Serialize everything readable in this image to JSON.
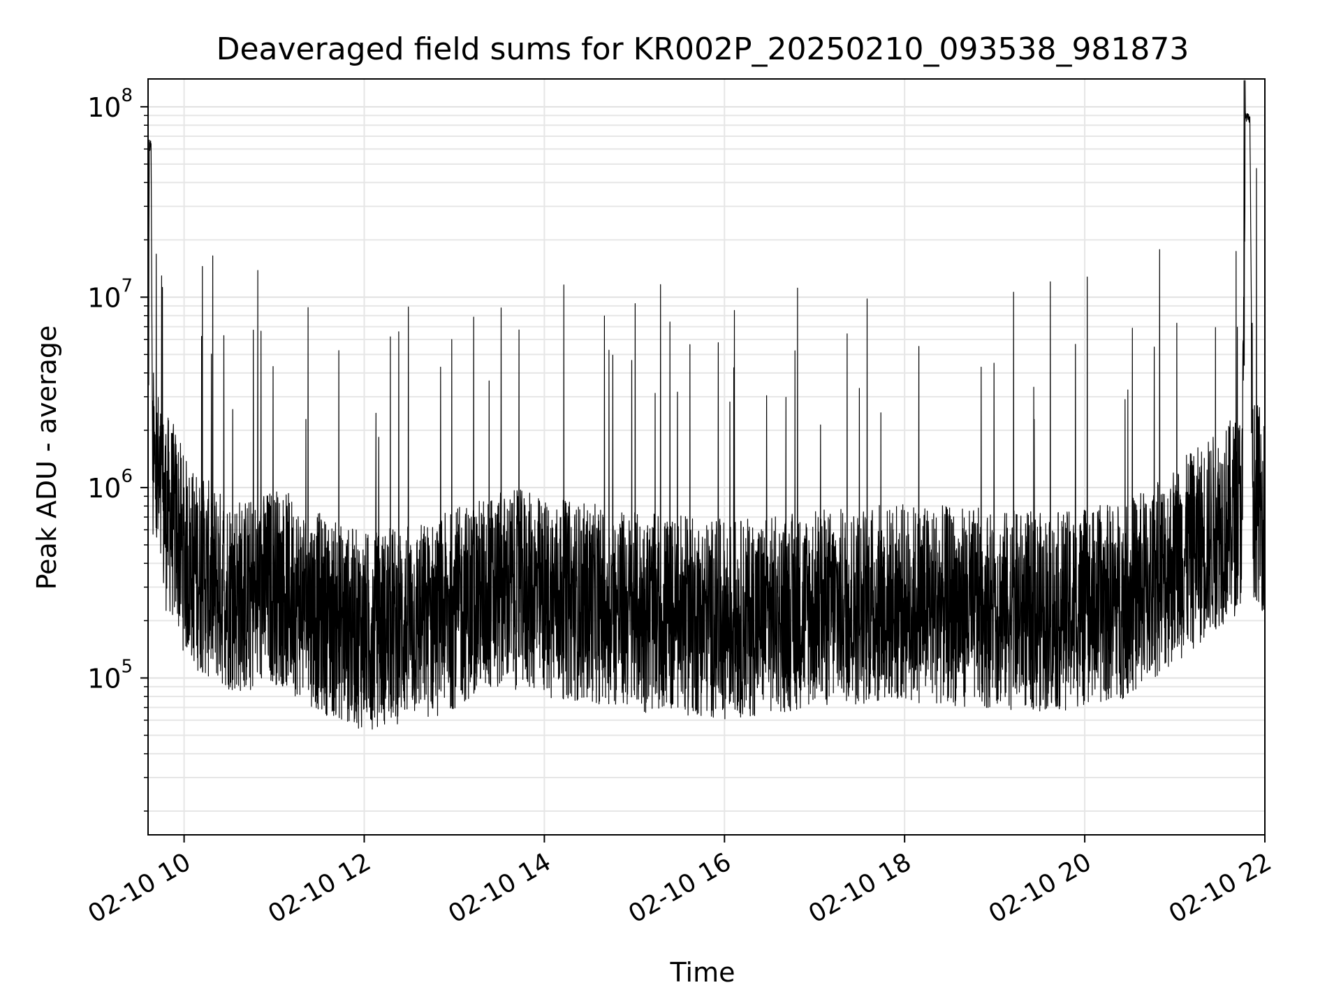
{
  "chart_data": {
    "type": "line",
    "title": "Deaveraged field sums for KR002P_20250210_093538_981873",
    "xlabel": "Time",
    "ylabel": "Peak ADU - average",
    "yscale": "log",
    "xlim": [
      "2025-02-10 09:36",
      "2025-02-10 22:00"
    ],
    "ylim": [
      15000,
      140000000
    ],
    "grid": true,
    "line_color": "#000000",
    "x_ticks": [
      "02-10 10",
      "02-10 12",
      "02-10 14",
      "02-10 16",
      "02-10 18",
      "02-10 20",
      "02-10 22"
    ],
    "y_ticks": [
      {
        "base": "10",
        "exp": "5",
        "value": 100000
      },
      {
        "base": "10",
        "exp": "6",
        "value": 1000000
      },
      {
        "base": "10",
        "exp": "7",
        "value": 10000000
      },
      {
        "base": "10",
        "exp": "8",
        "value": 100000000
      }
    ],
    "series": [
      {
        "x": [
          "2025-02-10 09:36",
          "2025-02-10 09:37",
          "2025-02-10 09:38",
          "2025-02-10 09:39",
          "2025-02-10 09:42",
          "2025-02-10 09:45",
          "2025-02-10 09:50",
          "2025-02-10 09:55",
          "2025-02-10 10:00",
          "2025-02-10 10:10",
          "2025-02-10 10:20",
          "2025-02-10 10:30",
          "2025-02-10 10:45",
          "2025-02-10 11:00",
          "2025-02-10 11:15",
          "2025-02-10 11:30",
          "2025-02-10 11:45",
          "2025-02-10 12:00",
          "2025-02-10 12:15",
          "2025-02-10 12:30",
          "2025-02-10 12:45",
          "2025-02-10 13:00",
          "2025-02-10 13:15",
          "2025-02-10 13:30",
          "2025-02-10 13:45",
          "2025-02-10 14:00",
          "2025-02-10 14:30",
          "2025-02-10 15:00",
          "2025-02-10 15:30",
          "2025-02-10 16:00",
          "2025-02-10 16:30",
          "2025-02-10 17:00",
          "2025-02-10 17:30",
          "2025-02-10 18:00",
          "2025-02-10 18:30",
          "2025-02-10 19:00",
          "2025-02-10 19:30",
          "2025-02-10 20:00",
          "2025-02-10 20:30",
          "2025-02-10 20:45",
          "2025-02-10 21:00",
          "2025-02-10 21:15",
          "2025-02-10 21:30",
          "2025-02-10 21:40",
          "2025-02-10 21:45",
          "2025-02-10 21:47",
          "2025-02-10 21:50",
          "2025-02-10 21:52",
          "2025-02-10 21:55",
          "2025-02-10 22:00"
        ],
        "y": [
          2000000,
          60000000,
          65000000,
          1500000,
          1200000,
          900000,
          800000,
          700000,
          500000,
          400000,
          350000,
          320000,
          300000,
          350000,
          300000,
          250000,
          220000,
          200000,
          210000,
          220000,
          230000,
          260000,
          300000,
          320000,
          330000,
          300000,
          280000,
          250000,
          240000,
          230000,
          240000,
          260000,
          270000,
          280000,
          270000,
          260000,
          250000,
          260000,
          300000,
          350000,
          450000,
          550000,
          700000,
          800000,
          900000,
          90000000,
          85000000,
          1000000,
          950000,
          800000
        ]
      }
    ]
  }
}
